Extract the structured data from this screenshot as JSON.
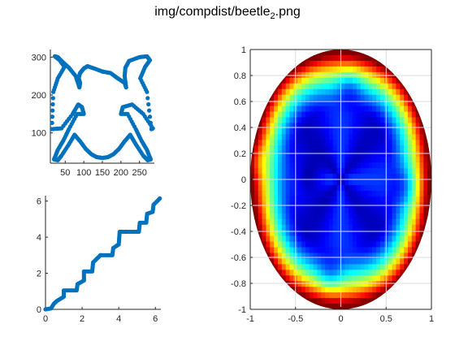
{
  "figure": {
    "title_main": "img/compdist/beetle",
    "title_sub": "2",
    "title_ext": ".png"
  },
  "chart_data": [
    {
      "type": "scatter",
      "name": "beetle contour",
      "xlim": [
        10,
        290
      ],
      "ylim": [
        20,
        320
      ],
      "xticks": [
        50,
        100,
        150,
        200,
        250
      ],
      "xtick_labels": [
        "50",
        "100",
        "150",
        "200",
        "250"
      ],
      "yticks": [
        100,
        200,
        300
      ],
      "ytick_labels": [
        "100",
        "200",
        "300"
      ],
      "grid": false,
      "color": "#0072bd",
      "x": [
        150,
        128,
        110,
        100,
        90,
        86,
        90,
        88,
        78,
        60,
        40,
        30,
        22,
        35,
        48,
        30,
        18,
        14,
        40,
        70,
        85,
        95,
        100,
        82,
        60,
        45,
        30,
        22,
        20,
        30,
        40,
        60,
        75,
        90,
        105,
        120,
        135,
        150,
        165,
        180,
        195,
        210,
        225,
        240,
        260,
        272,
        280,
        278,
        270,
        255,
        240,
        218,
        200,
        205,
        230,
        260,
        286,
        282,
        270,
        252,
        265,
        278,
        270,
        250,
        222,
        212,
        210,
        214,
        210,
        190,
        172,
        150
      ],
      "y": [
        262,
        270,
        276,
        270,
        258,
        245,
        232,
        220,
        250,
        272,
        290,
        300,
        302,
        292,
        274,
        244,
        208,
        110,
        112,
        150,
        175,
        168,
        150,
        150,
        110,
        80,
        55,
        35,
        30,
        28,
        40,
        70,
        95,
        78,
        58,
        44,
        36,
        34,
        36,
        44,
        58,
        78,
        95,
        70,
        40,
        28,
        30,
        35,
        55,
        80,
        110,
        150,
        150,
        168,
        175,
        150,
        112,
        110,
        208,
        244,
        274,
        292,
        302,
        300,
        290,
        272,
        250,
        220,
        232,
        245,
        258,
        262
      ]
    },
    {
      "type": "line",
      "name": "staircase",
      "xlim": [
        0,
        6.3
      ],
      "ylim": [
        0,
        6.3
      ],
      "xticks": [
        0,
        2,
        4,
        6
      ],
      "xtick_labels": [
        "0",
        "2",
        "4",
        "6"
      ],
      "yticks": [
        0,
        2,
        4,
        6
      ],
      "ytick_labels": [
        "0",
        "2",
        "4",
        "6"
      ],
      "grid": false,
      "color": "#0072bd",
      "x": [
        0,
        0.3,
        0.45,
        0.6,
        1.0,
        1.0,
        1.7,
        1.75,
        2.1,
        2.1,
        2.55,
        2.6,
        3.0,
        3.0,
        3.65,
        3.7,
        4.0,
        4.05,
        4.4,
        4.4,
        5.1,
        5.15,
        5.5,
        5.55,
        5.85,
        5.9,
        6.2,
        6.28
      ],
      "y": [
        0,
        0.05,
        0.3,
        0.45,
        0.7,
        1.05,
        1.05,
        1.4,
        1.6,
        2.1,
        2.1,
        2.6,
        3.0,
        3.0,
        3.0,
        3.4,
        3.6,
        4.3,
        4.3,
        4.3,
        4.3,
        4.8,
        4.8,
        5.3,
        5.4,
        5.8,
        6.1,
        6.2
      ]
    },
    {
      "type": "heatmap",
      "name": "distance map",
      "colormap": "jet",
      "xlim": [
        -1,
        1
      ],
      "ylim": [
        -1,
        1
      ],
      "xticks": [
        -1,
        -0.5,
        0,
        0.5,
        1
      ],
      "xtick_labels": [
        "-1",
        "-0.5",
        "0",
        "0.5",
        "1"
      ],
      "yticks": [
        -1,
        -0.8,
        -0.6,
        -0.4,
        -0.2,
        0,
        0.2,
        0.4,
        0.6,
        0.8,
        1
      ],
      "ytick_labels": [
        "-1",
        "-0.8",
        "-0.6",
        "-0.4",
        "-0.2",
        "0",
        "0.2",
        "0.4",
        "0.6",
        "0.8",
        "1"
      ],
      "grid": true,
      "domain": "ellipse",
      "minima": [
        {
          "x": -0.35,
          "y": 0.02
        },
        {
          "x": 0.72,
          "y": -0.05
        },
        {
          "x": 0.1,
          "y": 0.72
        },
        {
          "x": -0.12,
          "y": -0.74
        },
        {
          "x": -0.96,
          "y": 0.15
        }
      ]
    }
  ]
}
